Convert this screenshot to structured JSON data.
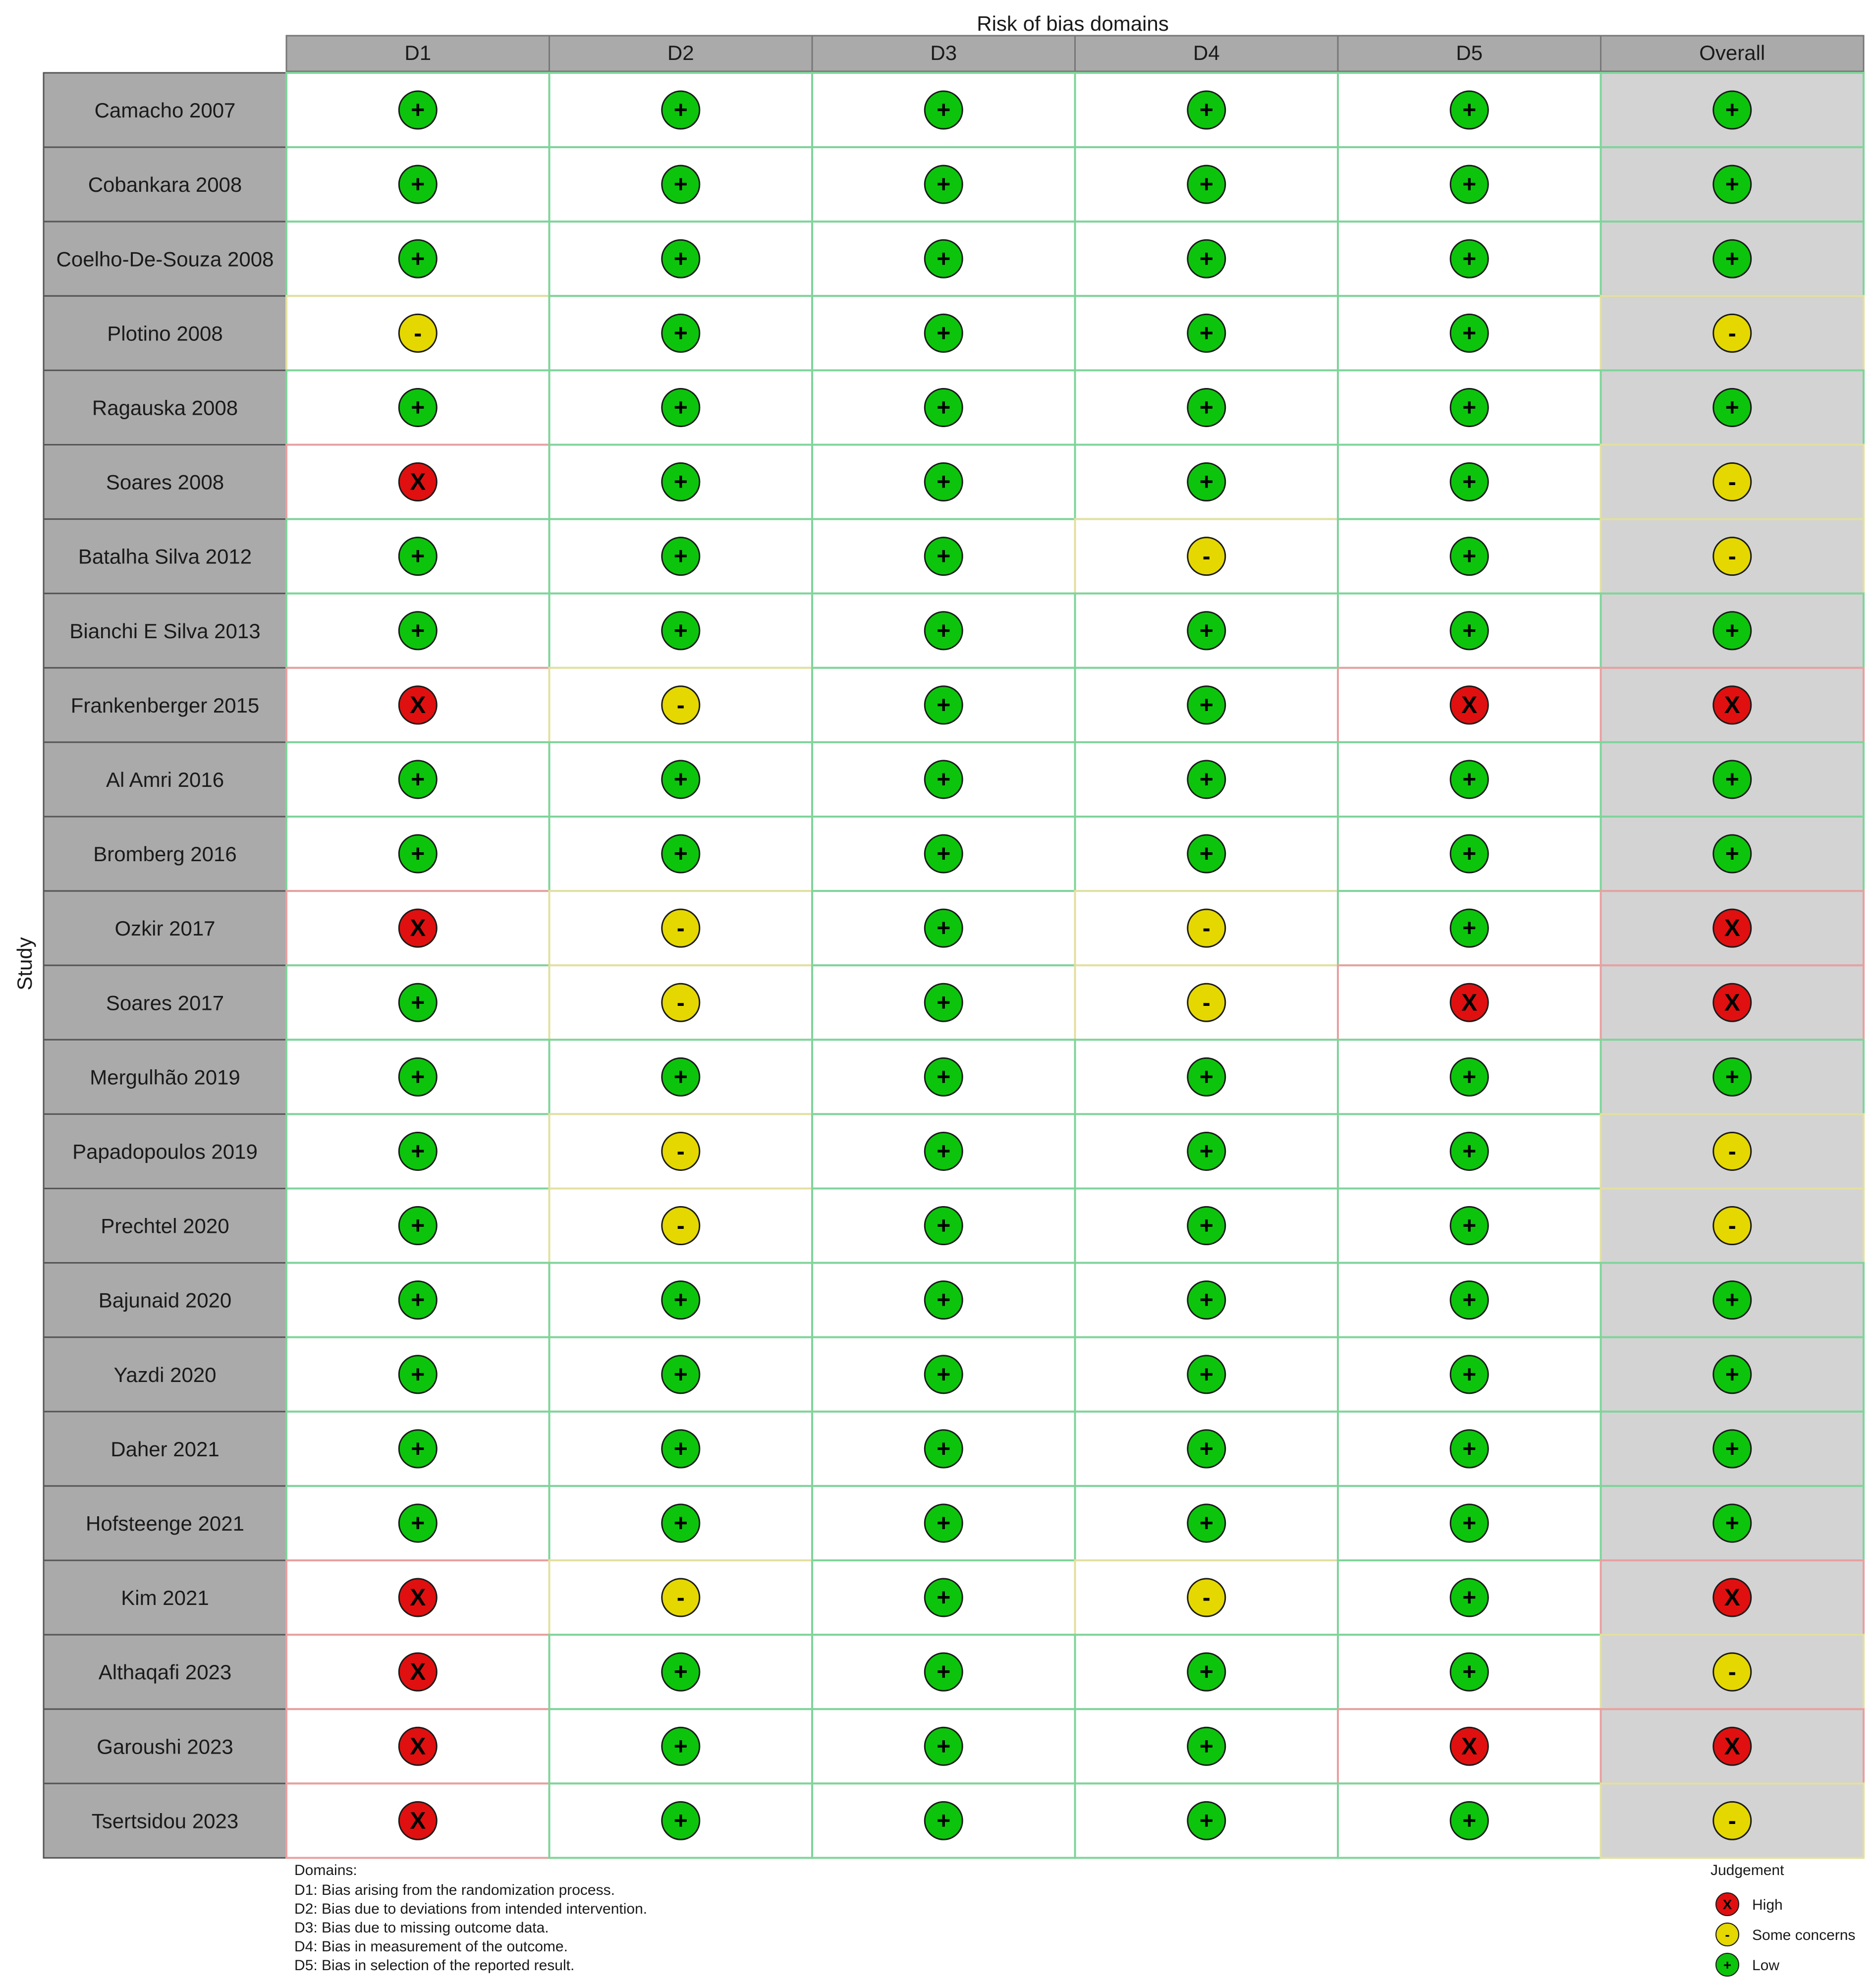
{
  "chart_data": {
    "type": "table",
    "title": "Risk of bias domains",
    "ylabel": "Study",
    "columns": [
      "D1",
      "D2",
      "D3",
      "D4",
      "D5",
      "Overall"
    ],
    "rows": [
      {
        "study": "Camacho 2007",
        "values": [
          "low",
          "low",
          "low",
          "low",
          "low",
          "low"
        ]
      },
      {
        "study": "Cobankara 2008",
        "values": [
          "low",
          "low",
          "low",
          "low",
          "low",
          "low"
        ]
      },
      {
        "study": "Coelho-De-Souza 2008",
        "values": [
          "low",
          "low",
          "low",
          "low",
          "low",
          "low"
        ]
      },
      {
        "study": "Plotino 2008",
        "values": [
          "some",
          "low",
          "low",
          "low",
          "low",
          "some"
        ]
      },
      {
        "study": "Ragauska 2008",
        "values": [
          "low",
          "low",
          "low",
          "low",
          "low",
          "low"
        ]
      },
      {
        "study": "Soares 2008",
        "values": [
          "high",
          "low",
          "low",
          "low",
          "low",
          "some"
        ]
      },
      {
        "study": "Batalha Silva 2012",
        "values": [
          "low",
          "low",
          "low",
          "some",
          "low",
          "some"
        ]
      },
      {
        "study": "Bianchi E Silva 2013",
        "values": [
          "low",
          "low",
          "low",
          "low",
          "low",
          "low"
        ]
      },
      {
        "study": "Frankenberger 2015",
        "values": [
          "high",
          "some",
          "low",
          "low",
          "high",
          "high"
        ]
      },
      {
        "study": "Al Amri 2016",
        "values": [
          "low",
          "low",
          "low",
          "low",
          "low",
          "low"
        ]
      },
      {
        "study": "Bromberg 2016",
        "values": [
          "low",
          "low",
          "low",
          "low",
          "low",
          "low"
        ]
      },
      {
        "study": "Ozkir 2017",
        "values": [
          "high",
          "some",
          "low",
          "some",
          "low",
          "high"
        ]
      },
      {
        "study": "Soares 2017",
        "values": [
          "low",
          "some",
          "low",
          "some",
          "high",
          "high"
        ]
      },
      {
        "study": "Mergulhão 2019",
        "values": [
          "low",
          "low",
          "low",
          "low",
          "low",
          "low"
        ]
      },
      {
        "study": "Papadopoulos 2019",
        "values": [
          "low",
          "some",
          "low",
          "low",
          "low",
          "some"
        ]
      },
      {
        "study": "Prechtel 2020",
        "values": [
          "low",
          "some",
          "low",
          "low",
          "low",
          "some"
        ]
      },
      {
        "study": "Bajunaid 2020",
        "values": [
          "low",
          "low",
          "low",
          "low",
          "low",
          "low"
        ]
      },
      {
        "study": "Yazdi 2020",
        "values": [
          "low",
          "low",
          "low",
          "low",
          "low",
          "low"
        ]
      },
      {
        "study": "Daher 2021",
        "values": [
          "low",
          "low",
          "low",
          "low",
          "low",
          "low"
        ]
      },
      {
        "study": "Hofsteenge 2021",
        "values": [
          "low",
          "low",
          "low",
          "low",
          "low",
          "low"
        ]
      },
      {
        "study": "Kim 2021",
        "values": [
          "high",
          "some",
          "low",
          "some",
          "low",
          "high"
        ]
      },
      {
        "study": "Althaqafi 2023",
        "values": [
          "high",
          "low",
          "low",
          "low",
          "low",
          "some"
        ]
      },
      {
        "study": "Garoushi 2023",
        "values": [
          "high",
          "low",
          "low",
          "low",
          "high",
          "high"
        ]
      },
      {
        "study": "Tsertsidou 2023",
        "values": [
          "high",
          "low",
          "low",
          "low",
          "low",
          "some"
        ]
      }
    ],
    "judgements": {
      "high": {
        "label": "High",
        "symbol": "X",
        "color": "#e01010"
      },
      "some": {
        "label": "Some concerns",
        "symbol": "-",
        "color": "#e5d800"
      },
      "low": {
        "label": "Low",
        "symbol": "+",
        "color": "#0dc40d"
      }
    },
    "domains_heading": "Domains:",
    "domain_descriptions": [
      "D1: Bias arising from the randomization process.",
      "D2: Bias due to deviations from intended intervention.",
      "D3: Bias due to missing outcome data.",
      "D4: Bias in measurement of the outcome.",
      "D5: Bias in selection of the reported result."
    ],
    "legend_title": "Judgement",
    "legend_order": [
      "high",
      "some",
      "low"
    ],
    "legend_placement": "bottom-right",
    "colors": {
      "header_bg": "#aaaaaa",
      "study_bg": "#aaaaaa",
      "overall_bg": "#d3d3d3",
      "cell_bg": "#ffffff",
      "grid_low": "#7fd49a",
      "grid_some": "#e2e0a0",
      "grid_high": "#e8a0a0"
    }
  }
}
